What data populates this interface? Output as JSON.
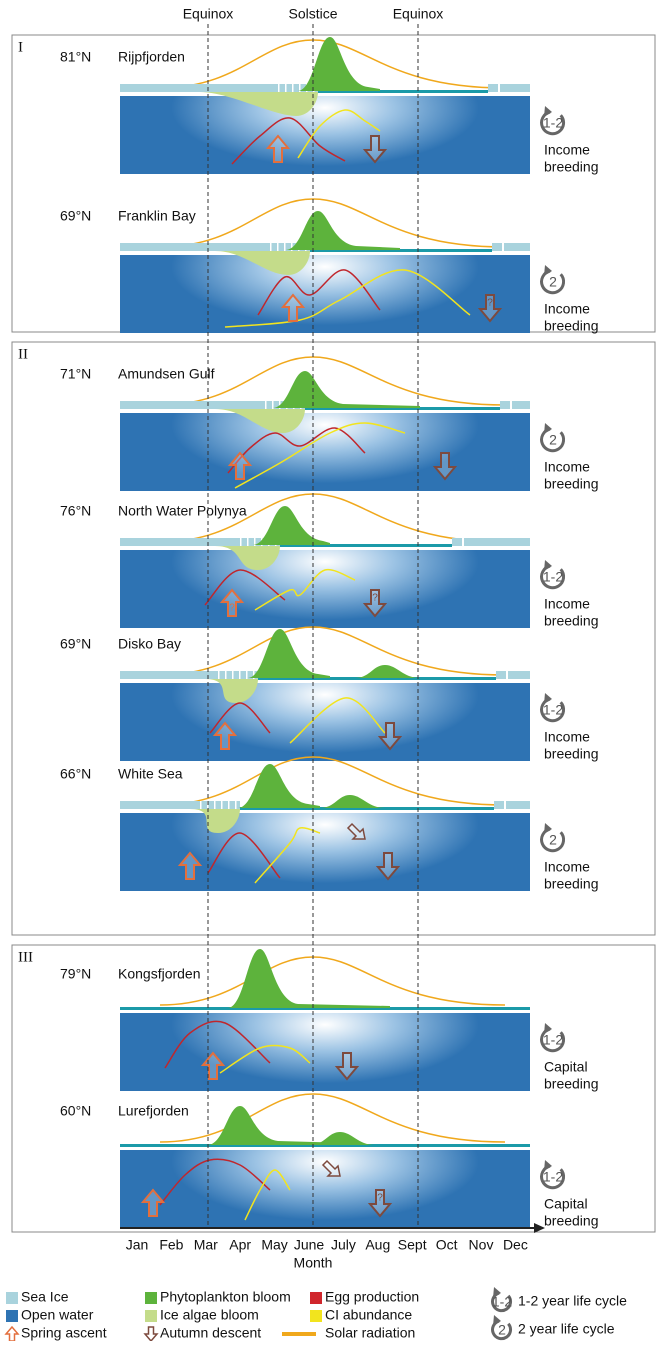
{
  "header": {
    "markers": [
      "Equinox",
      "Solstice",
      "Equinox"
    ]
  },
  "groups": [
    {
      "label": "I",
      "panels": [
        {
          "latitude": "81°N",
          "location": "Rijpfjorden",
          "life_cycle": "1-2",
          "breeding": [
            "Income",
            "breeding"
          ]
        },
        {
          "latitude": "69°N",
          "location": "Franklin Bay",
          "life_cycle": "2",
          "breeding": [
            "Income",
            "breeding"
          ],
          "autumn_note": "?"
        }
      ]
    },
    {
      "label": "II",
      "panels": [
        {
          "latitude": "71°N",
          "location": "Amundsen Gulf",
          "life_cycle": "2",
          "breeding": [
            "Income",
            "breeding"
          ]
        },
        {
          "latitude": "76°N",
          "location": "North Water Polynya",
          "life_cycle": "1-2",
          "breeding": [
            "Income",
            "breeding"
          ],
          "spring_note": "?",
          "autumn_note": "?"
        },
        {
          "latitude": "69°N",
          "location": "Disko Bay",
          "life_cycle": "1-2",
          "breeding": [
            "Income",
            "breeding"
          ]
        },
        {
          "latitude": "66°N",
          "location": "White Sea",
          "life_cycle": "2",
          "breeding": [
            "Income",
            "breeding"
          ]
        }
      ]
    },
    {
      "label": "III",
      "panels": [
        {
          "latitude": "79°N",
          "location": "Kongsfjorden",
          "life_cycle": "1-2",
          "breeding": [
            "Capital",
            "breeding"
          ]
        },
        {
          "latitude": "60°N",
          "location": "Lurefjorden",
          "life_cycle": "1-2",
          "breeding": [
            "Capital",
            "breeding"
          ],
          "autumn_note": "?"
        }
      ]
    }
  ],
  "axis": {
    "months": [
      "Jan",
      "Feb",
      "Mar",
      "Apr",
      "May",
      "June",
      "July",
      "Aug",
      "Sept",
      "Oct",
      "Nov",
      "Dec"
    ],
    "title": "Month"
  },
  "legend": [
    "Sea Ice",
    "Open water",
    "Spring ascent",
    "Phytoplankton bloom",
    "Ice algae bloom",
    "Autumn descent",
    "Egg production",
    "CI abundance",
    "Solar radiation"
  ],
  "legend_cycles": [
    {
      "symbol": "1-2",
      "label": "1-2 year life cycle"
    },
    {
      "symbol": "2",
      "label": "2 year life cycle"
    }
  ]
}
